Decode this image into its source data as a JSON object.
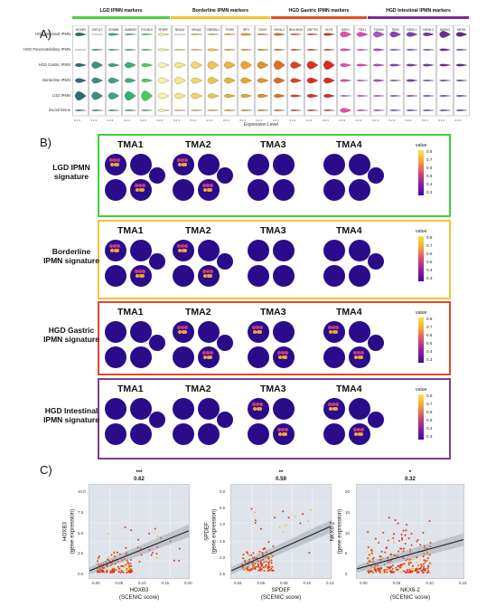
{
  "panel_a": {
    "letter": "A)",
    "groups": [
      {
        "label": "LGD IPMN markers",
        "color": "#4cd137"
      },
      {
        "label": "Borderline IPMN markers",
        "color": "#f4c430"
      },
      {
        "label": "HGD Gastric IPMN markers",
        "color": "#e84c1e"
      },
      {
        "label": "HGD Intestinal IPMN markers",
        "color": "#7b2d8e"
      }
    ],
    "genes": [
      "HOXB3",
      "ZNF117",
      "KDM5B",
      "GABBR3",
      "POLB10",
      "SPDEF",
      "NR4A1",
      "NR4A2",
      "CREB3L1",
      "FOSB",
      "IRF2",
      "SOX2",
      "NKX6-2",
      "BHLHE40",
      "ZNF703",
      "KLF5",
      "MSX1",
      "PDX1",
      "FOXA3",
      "TBX3",
      "NR3C1",
      "NKX6-2",
      "HNF4G",
      "MEIS1"
    ],
    "gene_colors": [
      "#2e6b73",
      "#3d8f7f",
      "#3aa58a",
      "#33b27a",
      "#43cf5e",
      "#f8f4a8",
      "#f5ea84",
      "#f0d766",
      "#efc44a",
      "#eeb036",
      "#f0a126",
      "#ea8f22",
      "#e66a1f",
      "#e0401f",
      "#dd2e21",
      "#d82c1e",
      "#ea4ca8",
      "#e342c6",
      "#b34cd0",
      "#8440c2",
      "#7a3ab8",
      "#6e3aa8",
      "#6a2c92",
      "#5b2a86"
    ],
    "rows": [
      "HGD Intestinal IPMN",
      "HGD Pancreatobiliary IPMN",
      "HGD Gastric IPMN",
      "Borderline IPMN",
      "LGD IPMN",
      "Ductal tissue"
    ],
    "xlabel": "Expression Level"
  },
  "panel_b": {
    "letter": "B)",
    "colorbar": {
      "title": "value",
      "ticks": [
        "0.8",
        "0.7",
        "0.6",
        "0.5",
        "0.4",
        "0.3"
      ]
    },
    "tma_labels": [
      "TMA1",
      "TMA2",
      "TMA3",
      "TMA4"
    ],
    "signatures": [
      {
        "label": "LGD IPMN signature",
        "color": "#3ad13a",
        "hot": [
          0,
          1
        ]
      },
      {
        "label": "Borderline IPMN signature",
        "color": "#f3c23b",
        "hot": [
          0,
          1
        ]
      },
      {
        "label": "HGD Gastric IPMN signature",
        "color": "#e0492a",
        "hot": [
          1,
          2,
          3
        ]
      },
      {
        "label": "HGD Intestinal IPMN signature",
        "color": "#7a3f8f",
        "hot": [
          2,
          3
        ]
      }
    ]
  },
  "panel_c": {
    "letter": "C)",
    "plots": [
      {
        "sig": "***",
        "r": "0.62",
        "xlabel": "HOXB3\n(SCENIC score)",
        "ylabel": "HOXB3\n(gene expression)",
        "xticks": [
          "0.00",
          "0.05",
          "0.10",
          "0.15",
          "0.20"
        ],
        "yticks": [
          "10.0",
          "7.5",
          "5.0",
          "2.5",
          "0.0"
        ]
      },
      {
        "sig": "**",
        "r": "0.59",
        "xlabel": "SPDEF\n(SCENIC score)",
        "ylabel": "SPDEF\n(gene expression)",
        "xticks": [
          "0.04",
          "0.06",
          "0.08",
          "0.10",
          "0.12"
        ],
        "yticks": [
          "0.0",
          "0.5",
          "1.0",
          "1.5",
          "2.0",
          "2.5"
        ]
      },
      {
        "sig": "*",
        "r": "0.32",
        "xlabel": "NKX6-2\n(SCENIC score)",
        "ylabel": "NKX6-2\n(gene expression)",
        "xticks": [
          "0.00",
          "0.05",
          "0.10",
          "0.15"
        ],
        "yticks": [
          "20",
          "15",
          "10",
          "5",
          "0"
        ]
      }
    ]
  }
}
